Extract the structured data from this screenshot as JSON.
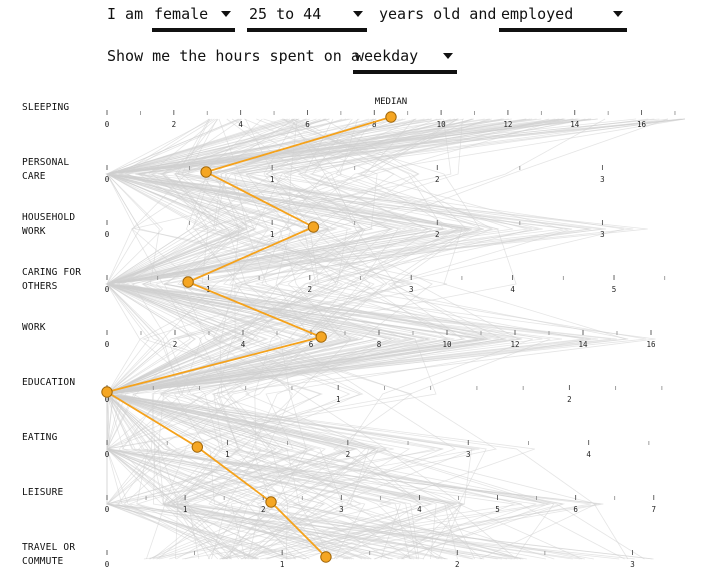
{
  "controls": {
    "sentence1": {
      "prefix": "I am",
      "sex": "female",
      "age": "25 to 44",
      "middle": "years old and",
      "employment": "employed"
    },
    "sentence2": {
      "prefix": "Show me the hours spent on a",
      "day": "weekday"
    }
  },
  "median_label": "MEDIAN",
  "colors": {
    "median_line": "#f5a21b",
    "median_dot": "#f5a623",
    "median_dot_stroke": "#a0660a",
    "background_lines": "#d0d0d0"
  },
  "chart_data": {
    "type": "line",
    "layout": "parallel-coordinates",
    "title": "",
    "categories": [
      {
        "label": [
          "SLEEPING"
        ],
        "ticks": [
          0,
          2,
          4,
          6,
          8,
          10,
          12,
          14,
          16
        ],
        "minor_step": 1,
        "max": 17.3,
        "median": 8.5
      },
      {
        "label": [
          "PERSONAL",
          "CARE"
        ],
        "ticks": [
          0,
          1,
          2,
          3
        ],
        "minor_step": 0.5,
        "max": 3.5,
        "median": 0.6
      },
      {
        "label": [
          "HOUSEHOLD",
          "WORK"
        ],
        "ticks": [
          0,
          1,
          2,
          3
        ],
        "minor_step": 0.5,
        "max": 3.5,
        "median": 1.25
      },
      {
        "label": [
          "CARING FOR",
          "OTHERS"
        ],
        "ticks": [
          0,
          1,
          2,
          3,
          4,
          5
        ],
        "minor_step": 0.5,
        "max": 5.7,
        "median": 0.8
      },
      {
        "label": [
          "WORK"
        ],
        "ticks": [
          0,
          2,
          4,
          6,
          8,
          10,
          12,
          14,
          16
        ],
        "minor_step": 1,
        "max": 17.0,
        "median": 6.3
      },
      {
        "label": [
          "EDUCATION"
        ],
        "ticks": [
          0,
          1,
          2
        ],
        "minor_step": 0.2,
        "max": 2.5,
        "median": 0.0
      },
      {
        "label": [
          "EATING"
        ],
        "ticks": [
          0,
          1,
          2,
          3,
          4
        ],
        "minor_step": 0.5,
        "max": 4.8,
        "median": 0.75
      },
      {
        "label": [
          "LEISURE"
        ],
        "ticks": [
          0,
          1,
          2,
          3,
          4,
          5,
          6,
          7
        ],
        "minor_step": 0.5,
        "max": 7.4,
        "median": 2.1
      },
      {
        "label": [
          "TRAVEL OR",
          "COMMUTE"
        ],
        "ticks": [
          0,
          1,
          2,
          3
        ],
        "minor_step": 0.5,
        "max": 3.3,
        "median": 1.25
      }
    ]
  }
}
